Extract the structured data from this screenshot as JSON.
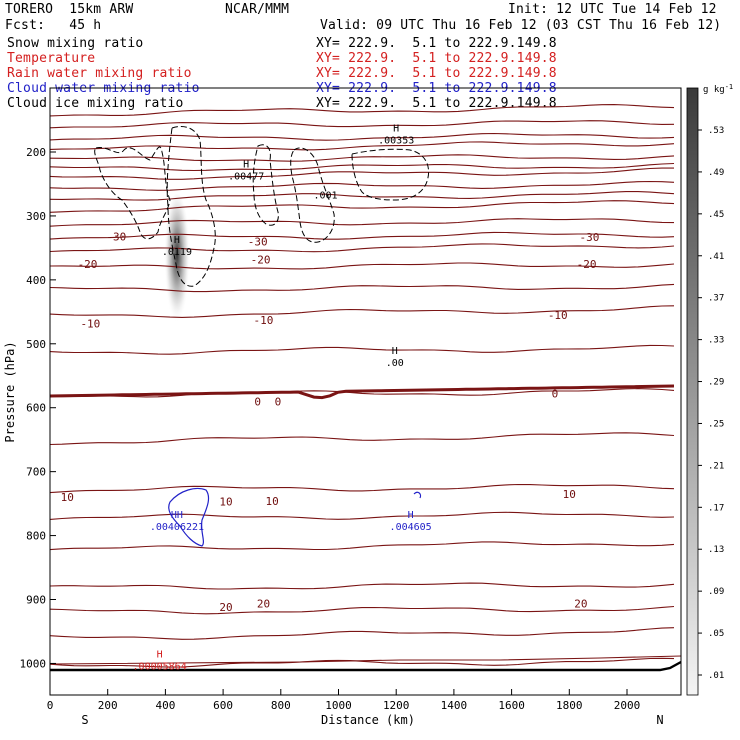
{
  "header": {
    "model": "TORERO  15km ARW",
    "org": "NCAR/MMM",
    "init": "Init: 12 UTC Tue 14 Feb 12",
    "fcst": "Fcst:   45 h",
    "valid": "Valid: 09 UTC Thu 16 Feb 12 (03 CST Thu 16 Feb 12)"
  },
  "fields": [
    {
      "name": "Snow mixing ratio",
      "xy": "XY= 222.9.  5.1 to 222.9.149.8",
      "color": "#000000"
    },
    {
      "name": "Temperature",
      "xy": "XY= 222.9.  5.1 to 222.9.149.8",
      "color": "#d42020"
    },
    {
      "name": "Rain water mixing ratio",
      "xy": "XY= 222.9.  5.1 to 222.9.149.8",
      "color": "#d42020"
    },
    {
      "name": "Cloud water mixing ratio",
      "xy": "XY= 222.9.  5.1 to 222.9.149.8",
      "color": "#2222c8"
    },
    {
      "name": "Cloud ice mixing ratio",
      "xy": "XY= 222.9.  5.1 to 222.9.149.8",
      "color": "#000000"
    }
  ],
  "chart_data": {
    "type": "heatmap",
    "xlabel": "Distance (km)",
    "ylabel": "Pressure (hPa)",
    "xlim": [
      0,
      2175
    ],
    "ylim": [
      1050,
      100
    ],
    "x_ticks": [
      0,
      200,
      400,
      600,
      800,
      1000,
      1200,
      1400,
      1600,
      1800,
      2000
    ],
    "y_ticks": [
      200,
      300,
      400,
      500,
      600,
      700,
      800,
      900,
      1000
    ],
    "x_end_labels": {
      "left": "S",
      "right": "N"
    },
    "colorbar": {
      "unit": "g kg",
      "unit_sup": "-1",
      "labels": [
        ".53",
        ".49",
        ".45",
        ".41",
        ".37",
        ".33",
        ".29",
        ".25",
        ".21",
        ".17",
        ".13",
        ".09",
        ".05",
        ".01"
      ],
      "color_top": "#3a3a3a",
      "color_bottom": "#f4f4f4"
    },
    "temperature_labels": [
      {
        "x": 230,
        "p": 332,
        "text": "-30"
      },
      {
        "x": 720,
        "p": 340,
        "text": "-30"
      },
      {
        "x": 1870,
        "p": 333,
        "text": "-30"
      },
      {
        "x": 130,
        "p": 375,
        "text": "-20"
      },
      {
        "x": 730,
        "p": 368,
        "text": "-20"
      },
      {
        "x": 1860,
        "p": 375,
        "text": "-20"
      },
      {
        "x": 140,
        "p": 468,
        "text": "-10"
      },
      {
        "x": 740,
        "p": 463,
        "text": "-10"
      },
      {
        "x": 1760,
        "p": 455,
        "text": "-10"
      },
      {
        "x": 720,
        "p": 590,
        "text": "0"
      },
      {
        "x": 790,
        "p": 590,
        "text": "0"
      },
      {
        "x": 1750,
        "p": 578,
        "text": "0"
      },
      {
        "x": 60,
        "p": 740,
        "text": "10"
      },
      {
        "x": 610,
        "p": 747,
        "text": "10"
      },
      {
        "x": 770,
        "p": 746,
        "text": "10"
      },
      {
        "x": 1800,
        "p": 735,
        "text": "10"
      },
      {
        "x": 610,
        "p": 912,
        "text": "20"
      },
      {
        "x": 740,
        "p": 906,
        "text": "20"
      },
      {
        "x": 1840,
        "p": 906,
        "text": "20"
      }
    ],
    "markers": [
      {
        "field": "Cloud ice mixing ratio",
        "x": 1200,
        "p": 177,
        "H": "H",
        "value": ".00353"
      },
      {
        "field": "Cloud ice mixing ratio",
        "x": 680,
        "p": 234,
        "H": "H",
        "value": ".00477"
      },
      {
        "field": "Cloud ice mixing ratio",
        "x": 955,
        "p": 263,
        "H": "",
        "value": ".001"
      },
      {
        "field": "Snow mixing ratio",
        "x": 440,
        "p": 352,
        "H": "H",
        "value": ".0119"
      },
      {
        "field": "Snow mixing ratio",
        "x": 1195,
        "p": 525,
        "H": "H",
        "value": ".00"
      },
      {
        "field": "Cloud water mixing ratio",
        "x": 440,
        "p": 782,
        "H": "HH",
        "value": ".00406221"
      },
      {
        "field": "Cloud water mixing ratio",
        "x": 1250,
        "p": 782,
        "H": "H",
        "value": ".004605"
      },
      {
        "field": "Rain water mixing ratio",
        "x": 380,
        "p": 1000,
        "H": "H",
        "value": ".00005864"
      }
    ]
  }
}
